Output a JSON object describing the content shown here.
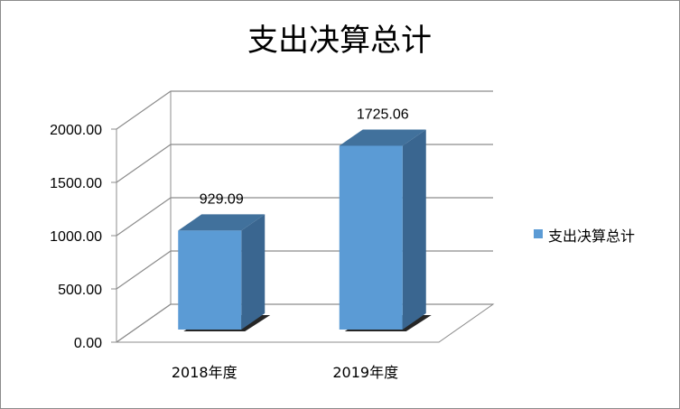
{
  "chart_data": {
    "type": "bar",
    "title": "支出决算总计",
    "categories": [
      "2018年度",
      "2019年度"
    ],
    "series": [
      {
        "name": "支出决算总计",
        "values": [
          929.09,
          1725.06
        ]
      }
    ],
    "data_labels": [
      "929.09",
      "1725.06"
    ],
    "y_ticks": [
      "0.00",
      "500.00",
      "1000.00",
      "1500.00",
      "2000.00"
    ],
    "ylim": [
      0,
      2000
    ],
    "grid": true,
    "legend_position": "right",
    "style": "3d-column",
    "colors": {
      "bar_front": "#5B9BD5",
      "bar_side": "#3A6690",
      "bar_top": "#41719C",
      "gridline": "#8c8c8c",
      "frame": "#8c8c8c"
    }
  }
}
